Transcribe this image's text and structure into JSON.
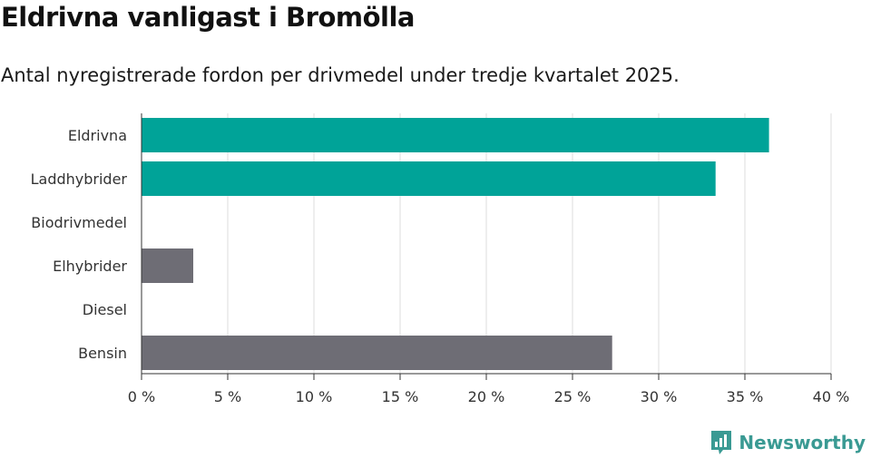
{
  "title": "Eldrivna vanligast i Bromölla",
  "subtitle": "Antal nyregistrerade fordon per drivmedel under tredje kvartalet 2025.",
  "brand": {
    "name": "Newsworthy",
    "icon": "newsworthy-logo-icon",
    "color": "#3a9a93"
  },
  "colors": {
    "highlight": "#00a398",
    "neutral": "#6e6d75",
    "grid": "#dddddd",
    "axis": "#333333"
  },
  "chart_data": {
    "type": "bar",
    "orientation": "horizontal",
    "categories": [
      "Eldrivna",
      "Laddhybrider",
      "Biodrivmedel",
      "Elhybrider",
      "Diesel",
      "Bensin"
    ],
    "values": [
      36.4,
      33.3,
      0,
      3.0,
      0,
      27.3
    ],
    "highlight": [
      true,
      true,
      false,
      false,
      false,
      false
    ],
    "xlim": [
      0,
      40
    ],
    "xticks": [
      0,
      5,
      10,
      15,
      20,
      25,
      30,
      35,
      40
    ],
    "tick_labels": [
      "0 %",
      "5 %",
      "10 %",
      "15 %",
      "20 %",
      "25 %",
      "30 %",
      "35 %",
      "40 %"
    ],
    "grid": true,
    "title": "Eldrivna vanligast i Bromölla",
    "xlabel": "",
    "ylabel": ""
  }
}
